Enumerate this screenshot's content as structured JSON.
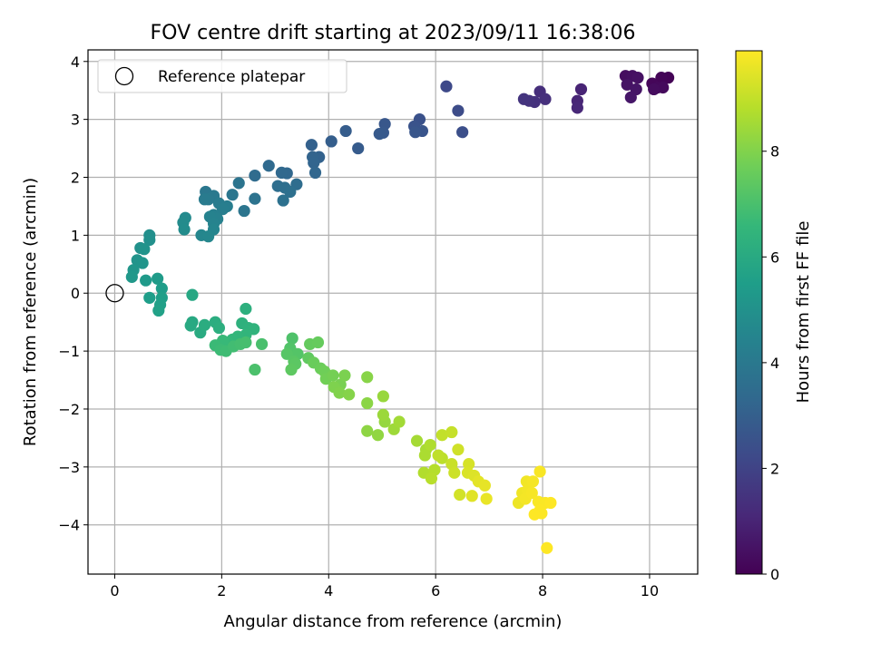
{
  "chart_data": {
    "type": "scatter",
    "title": "FOV centre drift starting at 2023/09/11 16:38:06",
    "xlabel": "Angular distance from reference (arcmin)",
    "ylabel": "Rotation from reference (arcmin)",
    "xlim": [
      -0.5,
      10.9
    ],
    "ylim": [
      -4.85,
      4.2
    ],
    "xticks": [
      0,
      2,
      4,
      6,
      8,
      10
    ],
    "yticks": [
      -4,
      -3,
      -2,
      -1,
      0,
      1,
      2,
      3,
      4
    ],
    "grid": true,
    "legend": {
      "placement": "top-left",
      "entries": [
        "Reference platepar"
      ]
    },
    "reference_point": {
      "x": 0,
      "y": 0
    },
    "colorbar": {
      "label": "Hours from first FF file",
      "colormap": "viridis",
      "range": [
        0,
        9.9
      ],
      "ticks": [
        0,
        2,
        4,
        6,
        8
      ]
    },
    "colors": {
      "viridis": [
        "#440154",
        "#482878",
        "#3e4989",
        "#31688e",
        "#26828e",
        "#1f9e89",
        "#35b779",
        "#6ece58",
        "#b5de2b",
        "#fde725"
      ]
    },
    "points": [
      [
        10.35,
        3.72,
        0.05
      ],
      [
        10.22,
        3.72,
        0.1
      ],
      [
        10.05,
        3.62,
        0.15
      ],
      [
        10.15,
        3.55,
        0.2
      ],
      [
        10.25,
        3.55,
        0.25
      ],
      [
        10.08,
        3.52,
        0.3
      ],
      [
        9.55,
        3.75,
        0.35
      ],
      [
        9.68,
        3.75,
        0.4
      ],
      [
        9.78,
        3.72,
        0.45
      ],
      [
        9.58,
        3.6,
        0.5
      ],
      [
        9.75,
        3.52,
        0.55
      ],
      [
        9.65,
        3.38,
        0.6
      ],
      [
        8.72,
        3.52,
        1.0
      ],
      [
        8.65,
        3.32,
        1.05
      ],
      [
        8.65,
        3.2,
        1.1
      ],
      [
        7.95,
        3.48,
        1.3
      ],
      [
        8.05,
        3.35,
        1.35
      ],
      [
        7.85,
        3.3,
        1.4
      ],
      [
        7.75,
        3.32,
        1.45
      ],
      [
        7.65,
        3.35,
        1.5
      ],
      [
        6.2,
        3.57,
        2.2
      ],
      [
        6.42,
        3.15,
        2.3
      ],
      [
        6.5,
        2.78,
        2.4
      ],
      [
        5.7,
        3.0,
        2.5
      ],
      [
        5.6,
        2.88,
        2.55
      ],
      [
        5.75,
        2.8,
        2.6
      ],
      [
        5.62,
        2.78,
        2.65
      ],
      [
        5.05,
        2.92,
        2.7
      ],
      [
        5.02,
        2.77,
        2.75
      ],
      [
        4.95,
        2.75,
        2.8
      ],
      [
        4.55,
        2.5,
        2.85
      ],
      [
        4.32,
        2.8,
        2.9
      ],
      [
        4.05,
        2.62,
        2.95
      ],
      [
        3.68,
        2.56,
        3.05
      ],
      [
        3.82,
        2.35,
        3.1
      ],
      [
        3.7,
        2.35,
        3.15
      ],
      [
        3.72,
        2.25,
        3.2
      ],
      [
        3.75,
        2.08,
        3.25
      ],
      [
        3.22,
        2.07,
        3.3
      ],
      [
        3.12,
        2.08,
        3.35
      ],
      [
        2.88,
        2.2,
        3.4
      ],
      [
        2.62,
        2.03,
        3.45
      ],
      [
        3.4,
        1.88,
        3.5
      ],
      [
        3.05,
        1.85,
        3.55
      ],
      [
        3.18,
        1.82,
        3.6
      ],
      [
        3.28,
        1.75,
        3.65
      ],
      [
        3.15,
        1.6,
        3.7
      ],
      [
        2.62,
        1.63,
        3.75
      ],
      [
        2.32,
        1.9,
        3.8
      ],
      [
        2.42,
        1.42,
        3.85
      ],
      [
        2.2,
        1.7,
        3.9
      ],
      [
        1.7,
        1.75,
        3.95
      ],
      [
        1.85,
        1.68,
        4.0
      ],
      [
        1.75,
        1.62,
        4.05
      ],
      [
        1.68,
        1.62,
        4.1
      ],
      [
        1.95,
        1.55,
        4.15
      ],
      [
        2.1,
        1.5,
        4.2
      ],
      [
        2.02,
        1.45,
        4.25
      ],
      [
        1.85,
        1.35,
        4.3
      ],
      [
        1.92,
        1.28,
        4.35
      ],
      [
        1.78,
        1.32,
        4.4
      ],
      [
        1.85,
        1.2,
        4.45
      ],
      [
        1.85,
        1.1,
        4.5
      ],
      [
        1.62,
        1.0,
        4.55
      ],
      [
        1.75,
        0.98,
        4.6
      ],
      [
        1.32,
        1.3,
        4.7
      ],
      [
        1.28,
        1.22,
        4.75
      ],
      [
        1.3,
        1.1,
        4.8
      ],
      [
        0.65,
        1.0,
        4.9
      ],
      [
        0.65,
        0.92,
        4.95
      ],
      [
        0.48,
        0.78,
        5.0
      ],
      [
        0.55,
        0.76,
        5.05
      ],
      [
        0.42,
        0.57,
        5.1
      ],
      [
        0.52,
        0.52,
        5.15
      ],
      [
        0.35,
        0.4,
        5.2
      ],
      [
        0.32,
        0.28,
        5.25
      ],
      [
        0.58,
        0.22,
        5.35
      ],
      [
        0.8,
        0.25,
        5.4
      ],
      [
        0.88,
        0.08,
        5.45
      ],
      [
        0.65,
        -0.08,
        5.5
      ],
      [
        0.88,
        -0.08,
        5.55
      ],
      [
        0.85,
        -0.2,
        5.6
      ],
      [
        0.82,
        -0.3,
        5.65
      ],
      [
        1.45,
        -0.03,
        5.9
      ],
      [
        1.45,
        -0.5,
        5.95
      ],
      [
        1.42,
        -0.56,
        6.0
      ],
      [
        1.6,
        -0.68,
        6.05
      ],
      [
        1.68,
        -0.55,
        6.1
      ],
      [
        1.88,
        -0.5,
        6.15
      ],
      [
        1.95,
        -0.6,
        6.2
      ],
      [
        2.45,
        -0.27,
        6.25
      ],
      [
        2.38,
        -0.52,
        6.3
      ],
      [
        2.5,
        -0.6,
        6.35
      ],
      [
        2.6,
        -0.62,
        6.4
      ],
      [
        2.45,
        -0.72,
        6.45
      ],
      [
        2.3,
        -0.75,
        6.5
      ],
      [
        2.2,
        -0.8,
        6.55
      ],
      [
        2.12,
        -0.85,
        6.6
      ],
      [
        2.02,
        -0.82,
        6.65
      ],
      [
        1.88,
        -0.9,
        6.7
      ],
      [
        1.98,
        -0.98,
        6.75
      ],
      [
        2.08,
        -1.0,
        6.8
      ],
      [
        2.22,
        -0.92,
        6.85
      ],
      [
        2.35,
        -0.88,
        6.9
      ],
      [
        2.45,
        -0.85,
        6.95
      ],
      [
        2.75,
        -0.88,
        7.0
      ],
      [
        2.62,
        -1.32,
        7.05
      ],
      [
        3.32,
        -0.78,
        7.1
      ],
      [
        3.28,
        -0.95,
        7.15
      ],
      [
        3.42,
        -1.05,
        7.2
      ],
      [
        3.22,
        -1.05,
        7.25
      ],
      [
        3.35,
        -1.18,
        7.3
      ],
      [
        3.38,
        -1.22,
        7.35
      ],
      [
        3.3,
        -1.32,
        7.4
      ],
      [
        3.62,
        -1.12,
        7.45
      ],
      [
        3.65,
        -0.88,
        7.5
      ],
      [
        3.8,
        -0.85,
        7.55
      ],
      [
        3.72,
        -1.2,
        7.6
      ],
      [
        3.85,
        -1.3,
        7.65
      ],
      [
        3.92,
        -1.35,
        7.7
      ],
      [
        3.95,
        -1.48,
        7.75
      ],
      [
        4.08,
        -1.42,
        7.8
      ],
      [
        4.22,
        -1.58,
        7.85
      ],
      [
        4.3,
        -1.42,
        7.9
      ],
      [
        4.1,
        -1.62,
        7.95
      ],
      [
        4.2,
        -1.72,
        8.0
      ],
      [
        4.38,
        -1.75,
        8.05
      ],
      [
        4.72,
        -1.45,
        8.1
      ],
      [
        4.72,
        -1.9,
        8.15
      ],
      [
        4.72,
        -2.38,
        8.2
      ],
      [
        4.92,
        -2.45,
        8.25
      ],
      [
        5.05,
        -2.22,
        8.3
      ],
      [
        5.02,
        -1.78,
        8.35
      ],
      [
        5.02,
        -2.1,
        8.4
      ],
      [
        5.22,
        -2.35,
        8.45
      ],
      [
        5.32,
        -2.22,
        8.5
      ],
      [
        5.65,
        -2.55,
        8.55
      ],
      [
        5.82,
        -2.7,
        8.6
      ],
      [
        5.8,
        -2.8,
        8.65
      ],
      [
        5.9,
        -2.62,
        8.7
      ],
      [
        5.78,
        -3.1,
        8.75
      ],
      [
        5.98,
        -3.05,
        8.8
      ],
      [
        5.92,
        -3.2,
        8.85
      ],
      [
        6.12,
        -2.85,
        8.9
      ],
      [
        6.05,
        -2.8,
        8.95
      ],
      [
        6.12,
        -2.45,
        9.0
      ],
      [
        6.3,
        -2.4,
        9.05
      ],
      [
        6.3,
        -2.95,
        9.1
      ],
      [
        6.35,
        -3.1,
        9.15
      ],
      [
        6.42,
        -2.7,
        9.2
      ],
      [
        6.45,
        -3.48,
        9.25
      ],
      [
        6.62,
        -2.95,
        9.3
      ],
      [
        6.6,
        -3.1,
        9.35
      ],
      [
        6.72,
        -3.15,
        9.4
      ],
      [
        6.68,
        -3.5,
        9.45
      ],
      [
        6.8,
        -3.25,
        9.5
      ],
      [
        6.92,
        -3.32,
        9.55
      ],
      [
        6.95,
        -3.55,
        9.6
      ],
      [
        7.55,
        -3.62,
        9.65
      ],
      [
        7.62,
        -3.45,
        9.7
      ],
      [
        7.7,
        -3.25,
        9.72
      ],
      [
        7.72,
        -3.4,
        9.74
      ],
      [
        7.68,
        -3.55,
        9.76
      ],
      [
        7.82,
        -3.25,
        9.78
      ],
      [
        7.8,
        -3.45,
        9.8
      ],
      [
        7.95,
        -3.08,
        9.82
      ],
      [
        7.92,
        -3.6,
        9.84
      ],
      [
        8.05,
        -3.62,
        9.86
      ],
      [
        7.95,
        -3.75,
        9.88
      ],
      [
        7.98,
        -3.8,
        9.89
      ],
      [
        7.85,
        -3.82,
        9.9
      ],
      [
        8.15,
        -3.62,
        9.9
      ],
      [
        8.08,
        -4.4,
        9.9
      ]
    ]
  }
}
